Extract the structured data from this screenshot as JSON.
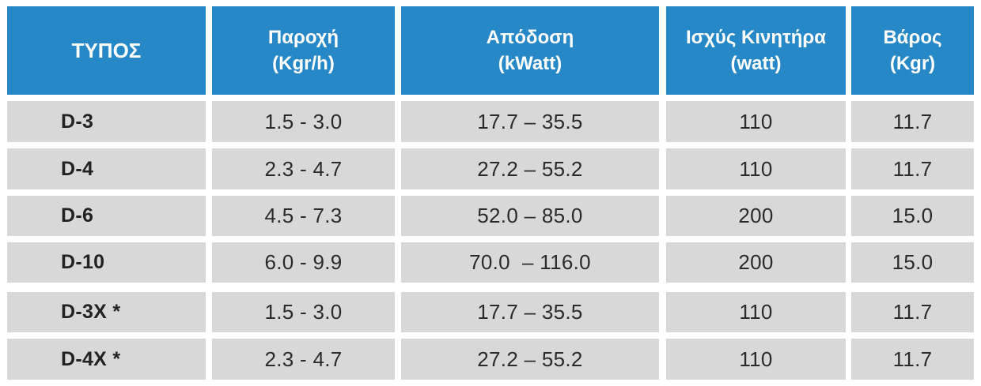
{
  "table": {
    "headers": [
      {
        "line1": "ΤΥΠΟΣ",
        "line2": ""
      },
      {
        "line1": "Παροχή",
        "line2": "(Kgr/h)"
      },
      {
        "line1": "Απόδοση",
        "line2": "(kWatt)"
      },
      {
        "line1": "Ισχύς Κινητήρα",
        "line2": "(watt)"
      },
      {
        "line1": "Βάρος",
        "line2": "(Kgr)"
      }
    ],
    "rows": [
      {
        "type": "D-3",
        "flow": "1.5 - 3.0",
        "output": "17.7 – 35.5",
        "motor_power": "110",
        "weight": "11.7"
      },
      {
        "type": "D-4",
        "flow": "2.3 - 4.7",
        "output": "27.2 – 55.2",
        "motor_power": "110",
        "weight": "11.7"
      },
      {
        "type": "D-6",
        "flow": "4.5 - 7.3",
        "output": "52.0 – 85.0",
        "motor_power": "200",
        "weight": "15.0"
      },
      {
        "type": "D-10",
        "flow": "6.0 - 9.9",
        "output": "70.0  – 116.0",
        "motor_power": "200",
        "weight": "15.0"
      },
      {
        "type": "D-3X *",
        "flow": "1.5 - 3.0",
        "output": "17.7 – 35.5",
        "motor_power": "110",
        "weight": "11.7"
      },
      {
        "type": "D-4X *",
        "flow": "2.3 - 4.7",
        "output": "27.2 – 55.2",
        "motor_power": "110",
        "weight": "11.7"
      }
    ],
    "colors": {
      "header_bg": "#2788c8",
      "header_text": "#ffffff",
      "row_bg": "#d8d8d8",
      "row_text": "#2a2a2a",
      "gap": "#ffffff"
    }
  }
}
